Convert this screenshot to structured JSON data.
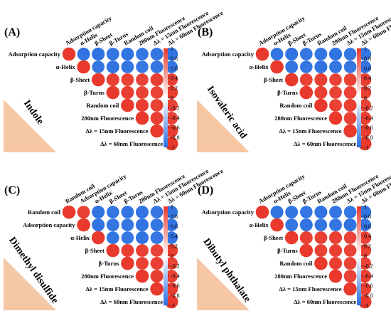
{
  "chart_data": [
    {
      "type": "correlation",
      "panel_label": "(A)",
      "annotation": "Indole",
      "variables": [
        "Adsorption capacity",
        "α-Helix",
        "β-Sheet",
        "β-Turns",
        "Random coil",
        "280nm Fluorescence",
        "Δλ = 15nm Fluorescence",
        "Δλ = 60nm Fluorescence"
      ],
      "values": [
        [
          1,
          -0.97,
          -0.98,
          -0.96,
          -0.97,
          -0.95,
          -0.96,
          -0.97
        ],
        [
          1,
          -0.95,
          -0.97,
          -0.96,
          -0.94,
          -0.96,
          -0.95
        ],
        [
          1,
          0.97,
          0.96,
          0.95,
          0.97,
          0.96
        ],
        [
          1,
          0.98,
          0.96,
          0.95,
          0.97
        ],
        [
          1,
          0.97,
          0.96,
          0.95
        ],
        [
          1,
          0.97,
          0.96
        ],
        [
          1,
          0.98
        ],
        [
          1
        ]
      ],
      "clim": [
        -1,
        1
      ],
      "cticks": [
        1,
        0.8,
        0.6,
        0.4,
        0.2,
        0,
        -0.2,
        -0.4,
        -0.6,
        -0.8,
        -1
      ],
      "colors": {
        "negative": "#2a6fe0",
        "zero": "#ffffff",
        "positive": "#e8392c"
      }
    },
    {
      "type": "correlation",
      "panel_label": "(B)",
      "annotation": "Isovaleric acid",
      "variables": [
        "Adsorption capacity",
        "α-Helix",
        "β-Sheet",
        "β-Turns",
        "Random coil",
        "280nm Fluorescence",
        "Δλ = 15nm Fluorescence",
        "Δλ = 60nm Fluorescence"
      ],
      "values": [
        [
          1,
          -0.96,
          -0.97,
          -0.95,
          -0.96,
          -0.97,
          -0.95,
          -0.96
        ],
        [
          1,
          -0.96,
          -0.95,
          -0.97,
          -0.96,
          -0.95,
          -0.96
        ],
        [
          1,
          0.96,
          0.97,
          0.95,
          0.96,
          0.97
        ],
        [
          1,
          0.97,
          0.95,
          0.96,
          0.96
        ],
        [
          1,
          0.96,
          0.97,
          0.95
        ],
        [
          1,
          0.96,
          0.97
        ],
        [
          1,
          0.97
        ],
        [
          1
        ]
      ],
      "clim": [
        -1,
        1
      ],
      "cticks": [
        1,
        0.8,
        0.6,
        0.4,
        0.2,
        0,
        -0.2,
        -0.4,
        -0.6,
        -0.8,
        -1
      ],
      "colors": {
        "negative": "#2a6fe0",
        "zero": "#ffffff",
        "positive": "#e8392c"
      }
    },
    {
      "type": "correlation",
      "panel_label": "(C)",
      "annotation": "Dimethyl disulfide",
      "variables": [
        "Random coil",
        "Adsorption capacity",
        "α-Helix",
        "β-Sheet",
        "β-Turns",
        "280nm Fluorescence",
        "Δλ = 15nm Fluorescence",
        "Δλ = 60nm Fluorescence"
      ],
      "values": [
        [
          1,
          0.96,
          -0.97,
          -0.95,
          -0.96,
          -0.97,
          -0.95,
          -0.96
        ],
        [
          1,
          -0.97,
          -0.96,
          -0.95,
          -0.97,
          -0.96,
          -0.95
        ],
        [
          1,
          -0.96,
          -0.95,
          -0.97,
          -0.96,
          -0.95
        ],
        [
          1,
          0.97,
          0.96,
          0.95,
          0.97
        ],
        [
          1,
          0.96,
          0.97,
          0.95
        ],
        [
          1,
          0.97,
          0.96
        ],
        [
          1,
          0.97
        ],
        [
          1
        ]
      ],
      "clim": [
        -1,
        1
      ],
      "cticks": [
        1,
        0.8,
        0.6,
        0.4,
        0.2,
        0,
        -0.2,
        -0.4,
        -0.6,
        -0.8,
        -1
      ],
      "colors": {
        "negative": "#2a6fe0",
        "zero": "#ffffff",
        "positive": "#e8392c"
      }
    },
    {
      "type": "correlation",
      "panel_label": "(D)",
      "annotation": "Dibutyl phthalate",
      "variables": [
        "Adsorption capacity",
        "α-Helix",
        "β-Sheet",
        "β-Turns",
        "Random coil",
        "280nm Fluorescence",
        "Δλ = 15nm Fluorescence",
        "Δλ = 60nm Fluorescence"
      ],
      "values": [
        [
          1,
          -0.97,
          -0.96,
          -0.95,
          -0.97,
          -0.96,
          -0.95,
          -0.97
        ],
        [
          1,
          -0.96,
          -0.97,
          -0.95,
          -0.96,
          -0.97,
          -0.95
        ],
        [
          1,
          0.97,
          0.96,
          0.97,
          0.95,
          0.96
        ],
        [
          1,
          0.96,
          0.97,
          0.95,
          0.96
        ],
        [
          1,
          0.97,
          0.96,
          0.95
        ],
        [
          1,
          0.96,
          0.97
        ],
        [
          1,
          0.96
        ],
        [
          1
        ]
      ],
      "clim": [
        -1,
        1
      ],
      "cticks": [
        1,
        0.8,
        0.6,
        0.4,
        0.2,
        0,
        -0.2,
        -0.4,
        -0.6,
        -0.8,
        -1
      ],
      "colors": {
        "negative": "#2a6fe0",
        "zero": "#ffffff",
        "positive": "#e8392c"
      }
    }
  ]
}
